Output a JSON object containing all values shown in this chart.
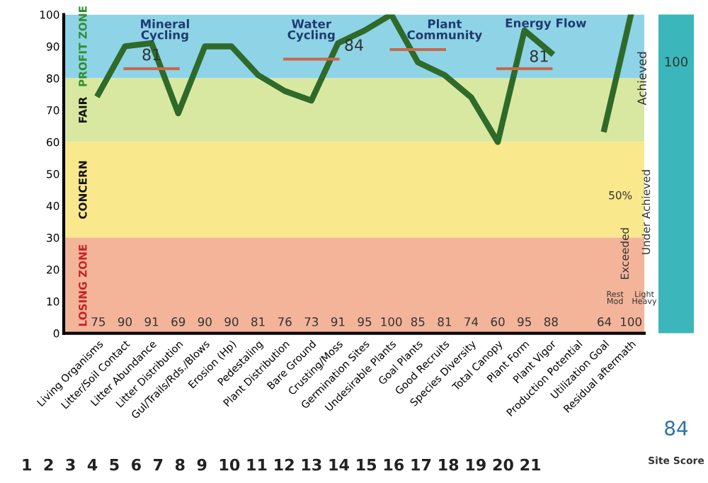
{
  "chart_data": {
    "type": "line",
    "categories": [
      "Living Organisms",
      "Litter/Soil Contact",
      "Litter Abundance",
      "Litter Distribution",
      "Gul/Trails/Rds./Blows",
      "Erosion (Hp)",
      "Pedestaling",
      "Plant Distribution",
      "Bare Ground",
      "Crusting/Moss",
      "Germination Sites",
      "Undesirable Plants",
      "Goal Plants",
      "Good Recruits",
      "Species Diversity",
      "Total Canopy",
      "Plant Form",
      "Plant Vigor",
      "Production Potential",
      "Utilization Goal",
      "Residual aftermath"
    ],
    "series": [
      {
        "color": "#2e6b2a",
        "values": [
          75,
          90,
          91,
          69,
          90,
          90,
          81,
          76,
          73,
          91,
          95,
          100,
          85,
          81,
          74,
          60,
          95,
          88,
          null,
          64,
          100
        ]
      },
      {
        "color": "#c8684a",
        "values": [
          null,
          83,
          83,
          83,
          null,
          null,
          null,
          86,
          86,
          86,
          null,
          89,
          89,
          89,
          null,
          83,
          83,
          83,
          null,
          null,
          null
        ]
      }
    ],
    "ylim": [
      0,
      100
    ],
    "yticks": [
      0,
      10,
      20,
      30,
      40,
      50,
      60,
      70,
      80,
      90,
      100
    ],
    "grid": false,
    "bands": [
      {
        "axis": "y",
        "from": 80,
        "to": 100,
        "label": "PROFIT ZONE",
        "color": "#8fd3e6"
      },
      {
        "axis": "y",
        "from": 60,
        "to": 80,
        "label": "FAIR",
        "color": "#d9e8a0"
      },
      {
        "axis": "y",
        "from": 30,
        "to": 60,
        "label": "CONCERN",
        "color": "#f9e88c"
      },
      {
        "axis": "y",
        "from": 0,
        "to": 30,
        "label": "LOSING ZONE",
        "color": "#f3b49a"
      }
    ],
    "annotations": [
      "Mineral\nCycling",
      "Water\nCycling",
      "Plant\nCommunity",
      "Energy Flow",
      "81",
      "84",
      "81",
      "Achieved",
      "50%",
      "Exceeded",
      "Under Achieved",
      "Rest\nMod",
      "Light\nHeavy",
      "100",
      "84",
      "Site Score",
      "75",
      "90",
      "91",
      "69",
      "90",
      "90",
      "81",
      "76",
      "73",
      "91",
      "95",
      "100",
      "85",
      "81",
      "74",
      "60",
      "95",
      "88",
      "64",
      "100",
      "1  2  3  4  5  6  7  8  9  10 11 12 13 14 15 16 17 18 19 20 21"
    ]
  }
}
